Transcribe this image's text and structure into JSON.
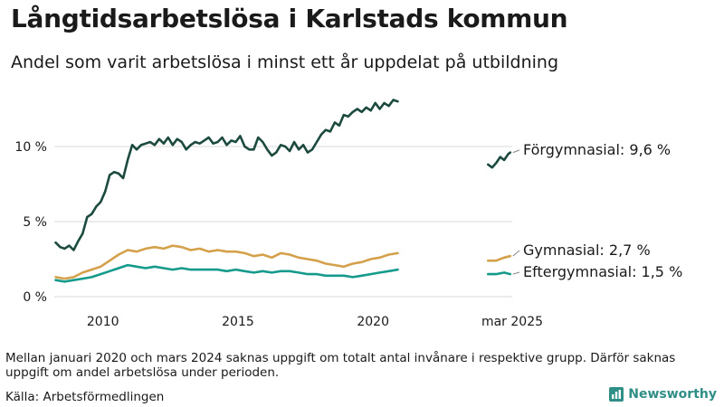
{
  "header": {
    "title": "Långtidsarbetslösa i Karlstads kommun",
    "subtitle": "Andel som varit arbetslösa i minst ett år uppdelat på utbildning"
  },
  "footer": {
    "note": "Mellan januari 2020 och mars 2024 saknas uppgift om totalt antal invånare i respektive grupp. Därför saknas uppgift om andel arbetslösa under perioden.",
    "source": "Källa: Arbetsförmedlingen",
    "brand": "Newsworthy"
  },
  "colors": {
    "forgymnasial": "#1c4a3e",
    "gymnasial": "#d4a04a",
    "eftergymnasial": "#159a8c",
    "brand": "#2f8e86"
  },
  "icons": {
    "brand": "bar-chart-logo-icon"
  },
  "chart_data": {
    "type": "line",
    "x_tick_labels": [
      "2010",
      "2015",
      "2020",
      "mar 2025"
    ],
    "y_tick_labels": [
      "10 %",
      "5 %",
      "0 %"
    ],
    "y_ticks": [
      10,
      5,
      0
    ],
    "ylim": [
      0,
      13.5
    ],
    "grid": "horizontal",
    "legend": "end-of-line labels",
    "series": [
      {
        "key": "forgymnasial",
        "label": "Förgymnasial: 9,6 %",
        "main": [
          [
            "2008-04",
            3.6
          ],
          [
            "2008-06",
            3.3
          ],
          [
            "2008-08",
            3.2
          ],
          [
            "2008-10",
            3.4
          ],
          [
            "2008-12",
            3.1
          ],
          [
            "2009-02",
            3.7
          ],
          [
            "2009-04",
            4.2
          ],
          [
            "2009-06",
            5.3
          ],
          [
            "2009-08",
            5.5
          ],
          [
            "2009-10",
            6.0
          ],
          [
            "2009-12",
            6.3
          ],
          [
            "2010-02",
            7.0
          ],
          [
            "2010-04",
            8.1
          ],
          [
            "2010-06",
            8.3
          ],
          [
            "2010-08",
            8.2
          ],
          [
            "2010-10",
            7.9
          ],
          [
            "2010-12",
            9.1
          ],
          [
            "2011-02",
            10.1
          ],
          [
            "2011-04",
            9.8
          ],
          [
            "2011-06",
            10.1
          ],
          [
            "2011-08",
            10.2
          ],
          [
            "2011-10",
            10.3
          ],
          [
            "2011-12",
            10.1
          ],
          [
            "2012-02",
            10.5
          ],
          [
            "2012-04",
            10.2
          ],
          [
            "2012-06",
            10.6
          ],
          [
            "2012-08",
            10.1
          ],
          [
            "2012-10",
            10.5
          ],
          [
            "2012-12",
            10.3
          ],
          [
            "2013-02",
            9.8
          ],
          [
            "2013-04",
            10.1
          ],
          [
            "2013-06",
            10.3
          ],
          [
            "2013-08",
            10.2
          ],
          [
            "2013-10",
            10.4
          ],
          [
            "2013-12",
            10.6
          ],
          [
            "2014-02",
            10.2
          ],
          [
            "2014-04",
            10.3
          ],
          [
            "2014-06",
            10.6
          ],
          [
            "2014-08",
            10.1
          ],
          [
            "2014-10",
            10.4
          ],
          [
            "2014-12",
            10.3
          ],
          [
            "2015-02",
            10.7
          ],
          [
            "2015-04",
            10.0
          ],
          [
            "2015-06",
            9.8
          ],
          [
            "2015-08",
            9.8
          ],
          [
            "2015-10",
            10.6
          ],
          [
            "2015-12",
            10.3
          ],
          [
            "2016-02",
            9.8
          ],
          [
            "2016-04",
            9.4
          ],
          [
            "2016-06",
            9.6
          ],
          [
            "2016-08",
            10.1
          ],
          [
            "2016-10",
            10.0
          ],
          [
            "2016-12",
            9.7
          ],
          [
            "2017-02",
            10.3
          ],
          [
            "2017-04",
            9.8
          ],
          [
            "2017-06",
            10.1
          ],
          [
            "2017-08",
            9.6
          ],
          [
            "2017-10",
            9.8
          ],
          [
            "2017-12",
            10.3
          ],
          [
            "2018-02",
            10.8
          ],
          [
            "2018-04",
            11.1
          ],
          [
            "2018-06",
            11.0
          ],
          [
            "2018-08",
            11.6
          ],
          [
            "2018-10",
            11.4
          ],
          [
            "2018-12",
            12.1
          ],
          [
            "2019-02",
            12.0
          ],
          [
            "2019-04",
            12.3
          ],
          [
            "2019-06",
            12.5
          ],
          [
            "2019-08",
            12.3
          ],
          [
            "2019-10",
            12.6
          ],
          [
            "2019-12",
            12.4
          ],
          [
            "2020-02",
            12.9
          ],
          [
            "2020-04",
            12.5
          ],
          [
            "2020-06",
            12.9
          ],
          [
            "2020-08",
            12.7
          ],
          [
            "2020-10",
            13.1
          ],
          [
            "2020-12",
            13.0
          ]
        ],
        "recent": [
          [
            "2024-04",
            8.8
          ],
          [
            "2024-06",
            8.6
          ],
          [
            "2024-08",
            8.9
          ],
          [
            "2024-10",
            9.3
          ],
          [
            "2024-12",
            9.1
          ],
          [
            "2025-02",
            9.5
          ],
          [
            "2025-03",
            9.6
          ]
        ]
      },
      {
        "key": "gymnasial",
        "label": "Gymnasial: 2,7 %",
        "main": [
          [
            "2008-04",
            1.3
          ],
          [
            "2008-08",
            1.2
          ],
          [
            "2008-12",
            1.3
          ],
          [
            "2009-04",
            1.6
          ],
          [
            "2009-08",
            1.8
          ],
          [
            "2009-12",
            2.0
          ],
          [
            "2010-04",
            2.4
          ],
          [
            "2010-08",
            2.8
          ],
          [
            "2010-12",
            3.1
          ],
          [
            "2011-04",
            3.0
          ],
          [
            "2011-08",
            3.2
          ],
          [
            "2011-12",
            3.3
          ],
          [
            "2012-04",
            3.2
          ],
          [
            "2012-08",
            3.4
          ],
          [
            "2012-12",
            3.3
          ],
          [
            "2013-04",
            3.1
          ],
          [
            "2013-08",
            3.2
          ],
          [
            "2013-12",
            3.0
          ],
          [
            "2014-04",
            3.1
          ],
          [
            "2014-08",
            3.0
          ],
          [
            "2014-12",
            3.0
          ],
          [
            "2015-04",
            2.9
          ],
          [
            "2015-08",
            2.7
          ],
          [
            "2015-12",
            2.8
          ],
          [
            "2016-04",
            2.6
          ],
          [
            "2016-08",
            2.9
          ],
          [
            "2016-12",
            2.8
          ],
          [
            "2017-04",
            2.6
          ],
          [
            "2017-08",
            2.5
          ],
          [
            "2017-12",
            2.4
          ],
          [
            "2018-04",
            2.2
          ],
          [
            "2018-08",
            2.1
          ],
          [
            "2018-12",
            2.0
          ],
          [
            "2019-04",
            2.2
          ],
          [
            "2019-08",
            2.3
          ],
          [
            "2019-12",
            2.5
          ],
          [
            "2020-04",
            2.6
          ],
          [
            "2020-08",
            2.8
          ],
          [
            "2020-12",
            2.9
          ]
        ],
        "recent": [
          [
            "2024-04",
            2.4
          ],
          [
            "2024-08",
            2.4
          ],
          [
            "2024-12",
            2.6
          ],
          [
            "2025-03",
            2.7
          ]
        ]
      },
      {
        "key": "eftergymnasial",
        "label": "Eftergymnasial: 1,5 %",
        "main": [
          [
            "2008-04",
            1.1
          ],
          [
            "2008-08",
            1.0
          ],
          [
            "2008-12",
            1.1
          ],
          [
            "2009-04",
            1.2
          ],
          [
            "2009-08",
            1.3
          ],
          [
            "2009-12",
            1.5
          ],
          [
            "2010-04",
            1.7
          ],
          [
            "2010-08",
            1.9
          ],
          [
            "2010-12",
            2.1
          ],
          [
            "2011-04",
            2.0
          ],
          [
            "2011-08",
            1.9
          ],
          [
            "2011-12",
            2.0
          ],
          [
            "2012-04",
            1.9
          ],
          [
            "2012-08",
            1.8
          ],
          [
            "2012-12",
            1.9
          ],
          [
            "2013-04",
            1.8
          ],
          [
            "2013-08",
            1.8
          ],
          [
            "2013-12",
            1.8
          ],
          [
            "2014-04",
            1.8
          ],
          [
            "2014-08",
            1.7
          ],
          [
            "2014-12",
            1.8
          ],
          [
            "2015-04",
            1.7
          ],
          [
            "2015-08",
            1.6
          ],
          [
            "2015-12",
            1.7
          ],
          [
            "2016-04",
            1.6
          ],
          [
            "2016-08",
            1.7
          ],
          [
            "2016-12",
            1.7
          ],
          [
            "2017-04",
            1.6
          ],
          [
            "2017-08",
            1.5
          ],
          [
            "2017-12",
            1.5
          ],
          [
            "2018-04",
            1.4
          ],
          [
            "2018-08",
            1.4
          ],
          [
            "2018-12",
            1.4
          ],
          [
            "2019-04",
            1.3
          ],
          [
            "2019-08",
            1.4
          ],
          [
            "2019-12",
            1.5
          ],
          [
            "2020-04",
            1.6
          ],
          [
            "2020-08",
            1.7
          ],
          [
            "2020-12",
            1.8
          ]
        ],
        "recent": [
          [
            "2024-04",
            1.5
          ],
          [
            "2024-08",
            1.5
          ],
          [
            "2024-12",
            1.6
          ],
          [
            "2025-03",
            1.5
          ]
        ]
      }
    ]
  }
}
